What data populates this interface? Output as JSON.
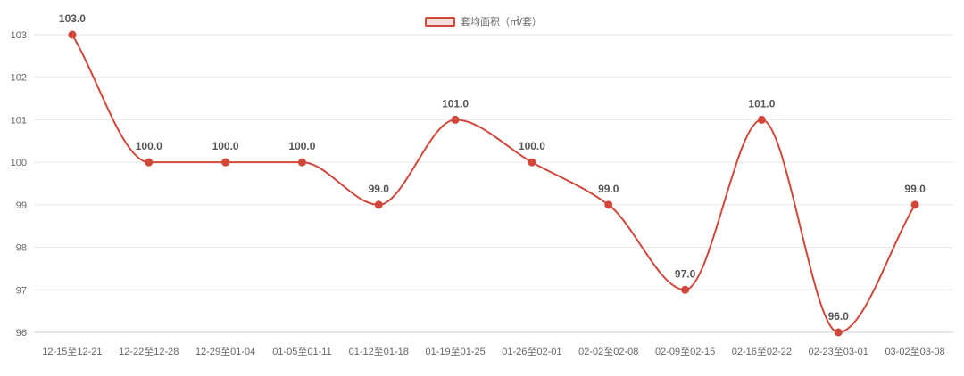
{
  "chart_data": {
    "type": "line",
    "legend": {
      "label": "套均面积（㎡/套）",
      "placement": "top-center"
    },
    "categories": [
      "12-15至12-21",
      "12-22至12-28",
      "12-29至01-04",
      "01-05至01-11",
      "01-12至01-18",
      "01-19至01-25",
      "01-26至02-01",
      "02-02至02-08",
      "02-09至02-15",
      "02-16至02-22",
      "02-23至03-01",
      "03-02至03-08"
    ],
    "series": [
      {
        "name": "套均面积（㎡/套）",
        "values": [
          103.0,
          100.0,
          100.0,
          100.0,
          99.0,
          101.0,
          100.0,
          99.0,
          97.0,
          101.0,
          96.0,
          99.0
        ],
        "labels": [
          "103.0",
          "100.0",
          "100.0",
          "100.0",
          "99.0",
          "101.0",
          "100.0",
          "99.0",
          "97.0",
          "101.0",
          "96.0",
          "99.0"
        ]
      }
    ],
    "y_ticks": [
      "96",
      "97",
      "98",
      "99",
      "100",
      "101",
      "102",
      "103"
    ],
    "ylim": [
      96,
      103
    ],
    "grid": true,
    "colors": {
      "line": "#d1483b",
      "grid": "#e6e6e6",
      "axis": "#cccccc"
    }
  }
}
